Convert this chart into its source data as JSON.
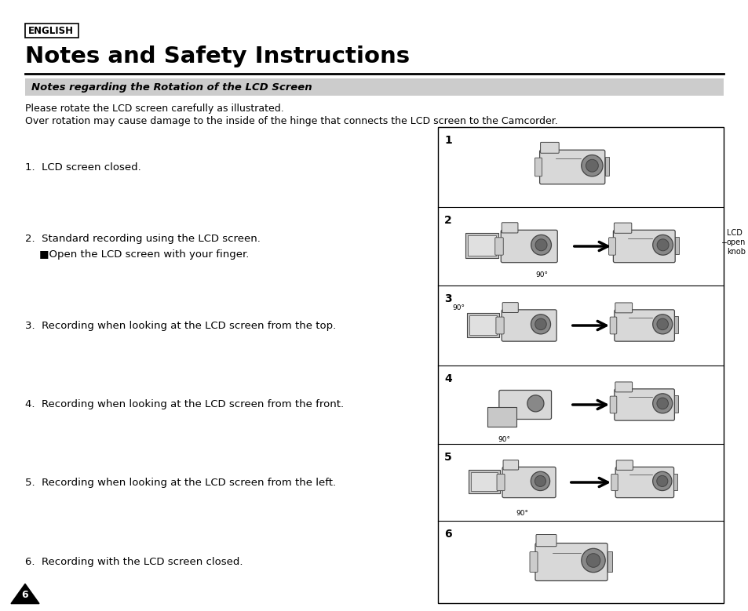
{
  "bg_color": "#ffffff",
  "english_label": "ENGLISH",
  "title": "Notes and Safety Instructions",
  "section_title": "Notes regarding the Rotation of the LCD Screen",
  "intro_line1": "Please rotate the LCD screen carefully as illustrated.",
  "intro_line2": "Over rotation may cause damage to the inside of the hinge that connects the LCD screen to the Camcorder.",
  "items": [
    {
      "num": "1.",
      "text": "LCD screen closed."
    },
    {
      "num": "2.",
      "text": "Standard recording using the LCD screen.",
      "subtext": "■Open the LCD screen with your finger."
    },
    {
      "num": "3.",
      "text": "Recording when looking at the LCD screen from the top."
    },
    {
      "num": "4.",
      "text": "Recording when looking at the LCD screen from the front."
    },
    {
      "num": "5.",
      "text": "Recording when looking at the LCD screen from the left."
    },
    {
      "num": "6.",
      "text": "Recording with the LCD screen closed."
    }
  ],
  "row_nums": [
    "1",
    "2",
    "3",
    "4",
    "5",
    "6"
  ],
  "lcd_knob_label": "LCD\nopen\nknob",
  "angle_label": "90°",
  "page_number": "6",
  "section_bg": "#cccccc",
  "panel_edge": "#000000",
  "cam_body": "#d8d8d8",
  "cam_edge": "#444444",
  "cam_lens": "#888888",
  "cam_dark": "#aaaaaa"
}
